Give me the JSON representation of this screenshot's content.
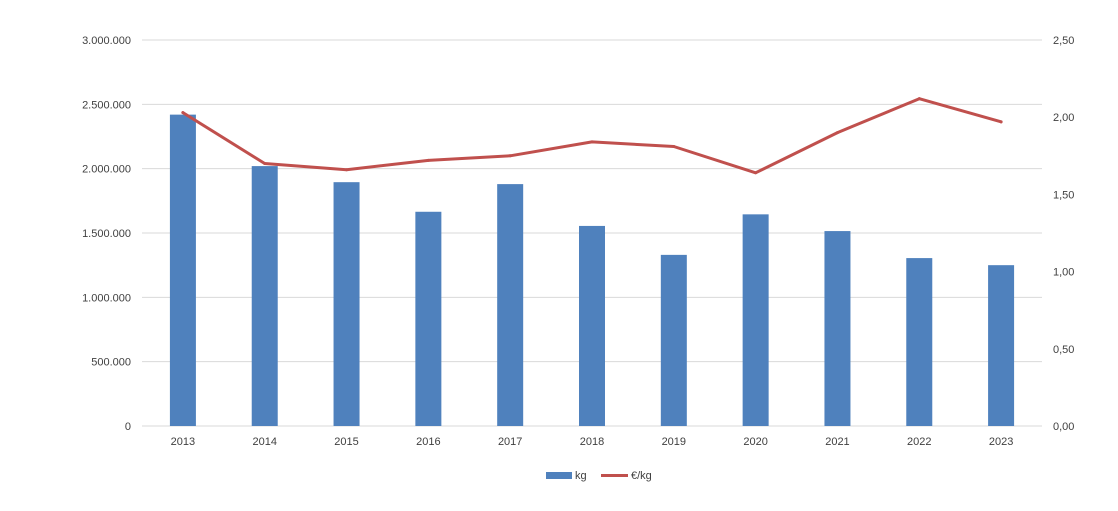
{
  "chart_data": {
    "type": "bar",
    "categories": [
      "2013",
      "2014",
      "2015",
      "2016",
      "2017",
      "2018",
      "2019",
      "2020",
      "2021",
      "2022",
      "2023"
    ],
    "series": [
      {
        "name": "kg",
        "type": "bar",
        "axis": "left",
        "color": "#4f81bd",
        "values": [
          2420000,
          2020000,
          1895000,
          1665000,
          1880000,
          1555000,
          1330000,
          1645000,
          1515000,
          1305000,
          1250000
        ]
      },
      {
        "name": "€/kg",
        "type": "line",
        "axis": "right",
        "color": "#c0504d",
        "values": [
          2.03,
          1.7,
          1.66,
          1.72,
          1.75,
          1.84,
          1.81,
          1.64,
          1.9,
          2.12,
          1.97
        ]
      }
    ],
    "y_left": {
      "min": 0,
      "max": 3000000,
      "ticks": [
        0,
        500000,
        1000000,
        1500000,
        2000000,
        2500000,
        3000000
      ],
      "tick_labels": [
        "0",
        "500.000",
        "1.000.000",
        "1.500.000",
        "2.000.000",
        "2.500.000",
        "3.000.000"
      ]
    },
    "y_right": {
      "min": 0,
      "max": 2.5,
      "ticks": [
        0,
        0.5,
        1.0,
        1.5,
        2.0,
        2.5
      ],
      "tick_labels": [
        "0,00",
        "0,50",
        "1,00",
        "1,50",
        "2,00",
        "2,50"
      ]
    },
    "grid": true,
    "legend": "bottom-center",
    "title": "",
    "xlabel": "",
    "ylabel": ""
  }
}
